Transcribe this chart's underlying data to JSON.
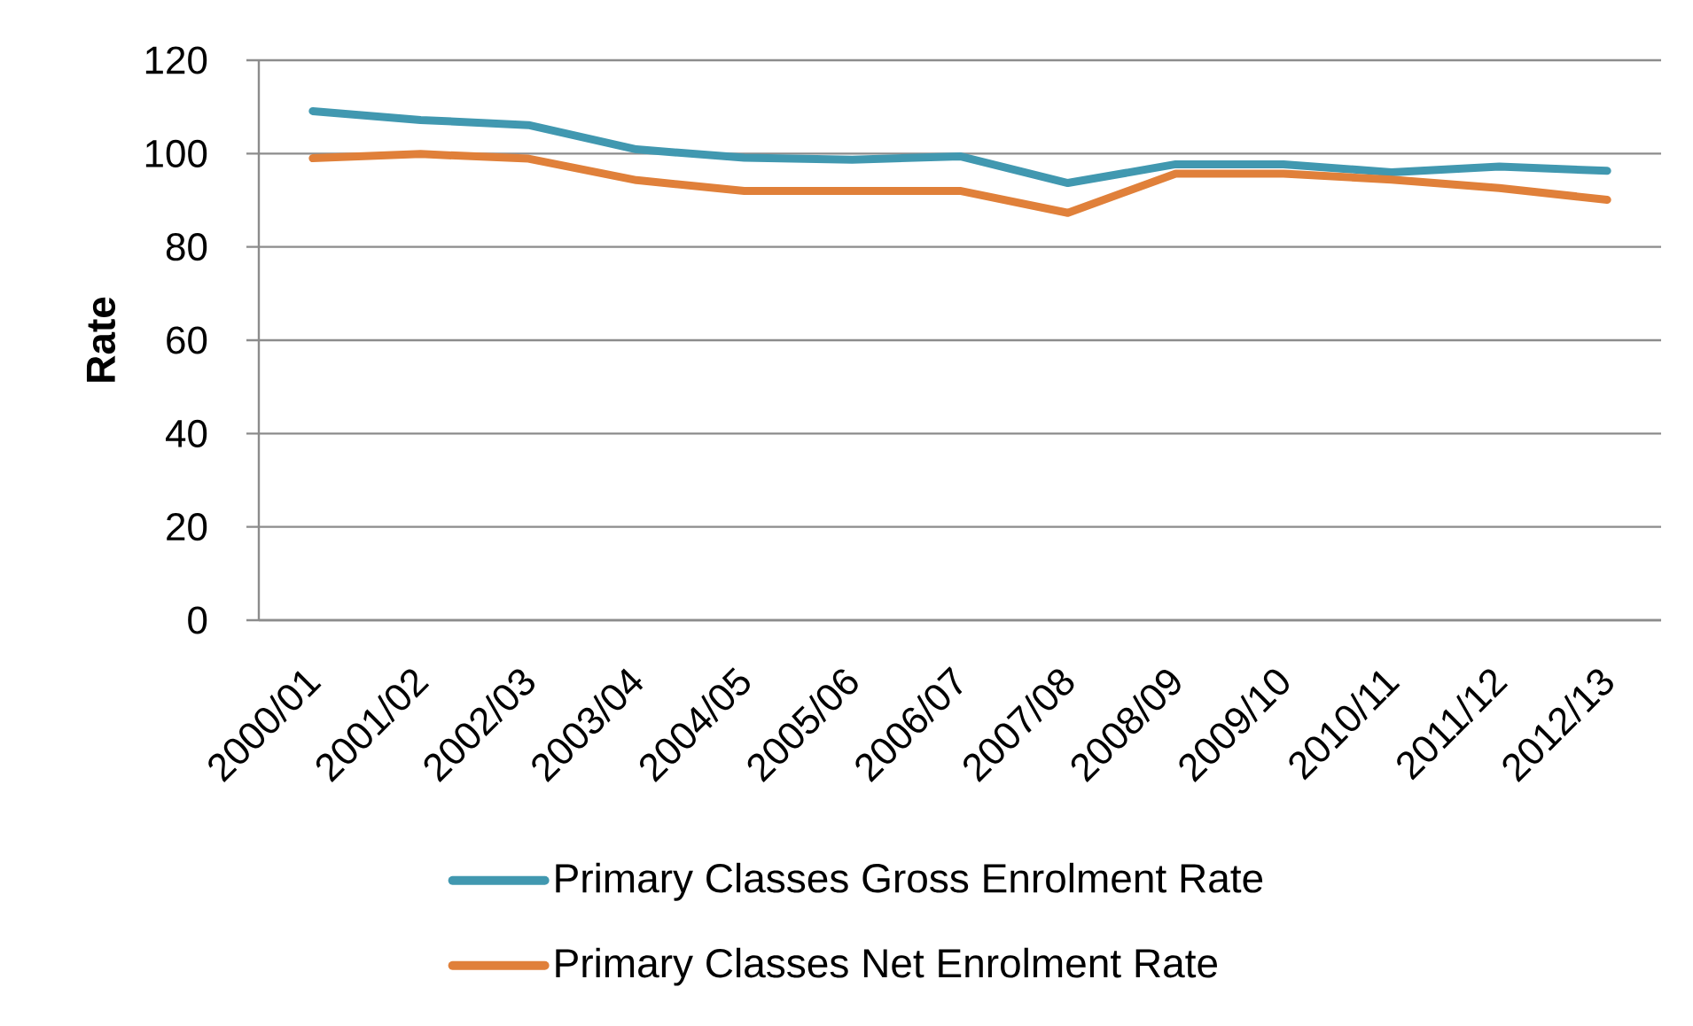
{
  "chart_data": {
    "type": "line",
    "ylabel": "Rate",
    "categories": [
      "2000/01",
      "2001/02",
      "2002/03",
      "2003/04",
      "2004/05",
      "2005/06",
      "2006/07",
      "2007/08",
      "2008/09",
      "2009/10",
      "2010/11",
      "2011/12",
      "2012/13"
    ],
    "series": [
      {
        "name": "Primary Classes Gross Enrolment Rate",
        "color": "#4198b0",
        "values": [
          109.1,
          107.2,
          106.1,
          100.9,
          99.1,
          98.7,
          99.4,
          93.7,
          97.7,
          97.7,
          96.0,
          97.2,
          96.3
        ]
      },
      {
        "name": "Primary Classes Net Enrolment Rate",
        "color": "#e0803a",
        "values": [
          99.0,
          99.9,
          98.9,
          94.3,
          92.0,
          92.0,
          92.0,
          87.3,
          95.7,
          95.7,
          94.4,
          92.6,
          90.1
        ]
      }
    ],
    "ylim": [
      0,
      120
    ],
    "yticks": [
      0,
      20,
      40,
      60,
      80,
      100,
      120
    ],
    "grid": "y",
    "legend": "bottom",
    "marker": "none",
    "line_style": "solid"
  }
}
